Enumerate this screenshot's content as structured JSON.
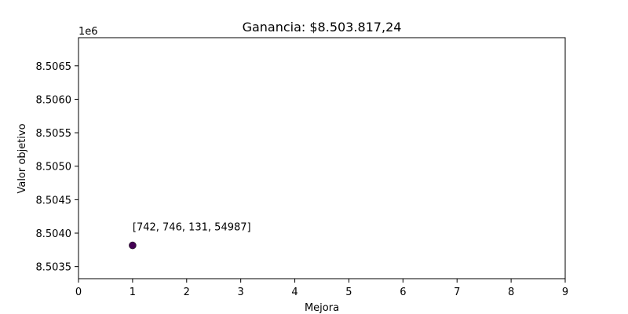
{
  "chart_data": {
    "type": "scatter",
    "title": "Ganancia: $8.503.817,24",
    "xlabel": "Mejora",
    "ylabel": "Valor objetivo",
    "y_offset_label": "1e6",
    "y_scale": 1000000,
    "xlim": [
      0,
      9
    ],
    "ylim": [
      8503320,
      8506920
    ],
    "x_ticks": [
      0,
      1,
      2,
      3,
      4,
      5,
      6,
      7,
      8,
      9
    ],
    "y_ticks": [
      8.5035,
      8.504,
      8.5045,
      8.505,
      8.5055,
      8.506,
      8.5065
    ],
    "y_tick_labels": [
      "8.5035",
      "8.5040",
      "8.5045",
      "8.5050",
      "8.5055",
      "8.5060",
      "8.5065"
    ],
    "grid": false,
    "points": [
      {
        "x": 1,
        "y": 8503817.24,
        "label": "[742, 746, 131, 54987]"
      }
    ],
    "colors": {
      "point": "#440154",
      "axis": "#000000"
    }
  }
}
